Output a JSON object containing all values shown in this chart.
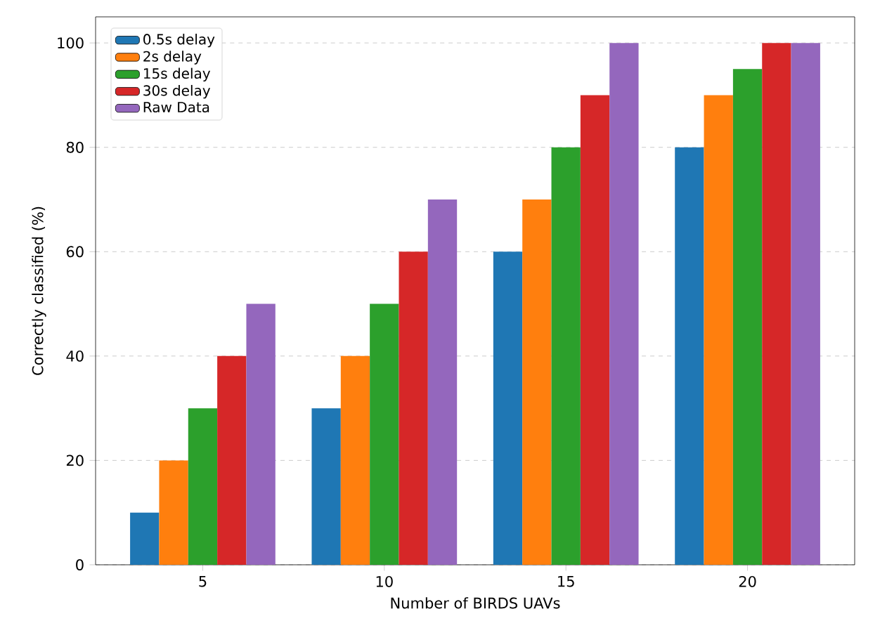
{
  "chart_data": {
    "type": "bar",
    "xlabel": "Number of BIRDS UAVs",
    "ylabel": "Correctly classified (%)",
    "categories": [
      "5",
      "10",
      "15",
      "20"
    ],
    "series": [
      {
        "name": "0.5s delay",
        "color": "#1f77b4",
        "values": [
          10,
          30,
          60,
          80
        ]
      },
      {
        "name": "2s delay",
        "color": "#ff7f0e",
        "values": [
          20,
          40,
          70,
          90
        ]
      },
      {
        "name": "15s delay",
        "color": "#2ca02c",
        "values": [
          30,
          50,
          80,
          95
        ]
      },
      {
        "name": "30s delay",
        "color": "#d62728",
        "values": [
          40,
          60,
          90,
          100
        ]
      },
      {
        "name": "Raw Data",
        "color": "#9467bd",
        "values": [
          50,
          70,
          100,
          100
        ]
      }
    ],
    "ylim": [
      0,
      105
    ],
    "yticks": [
      0,
      20,
      40,
      60,
      80,
      100
    ],
    "grid": "y",
    "legend": "top left"
  }
}
